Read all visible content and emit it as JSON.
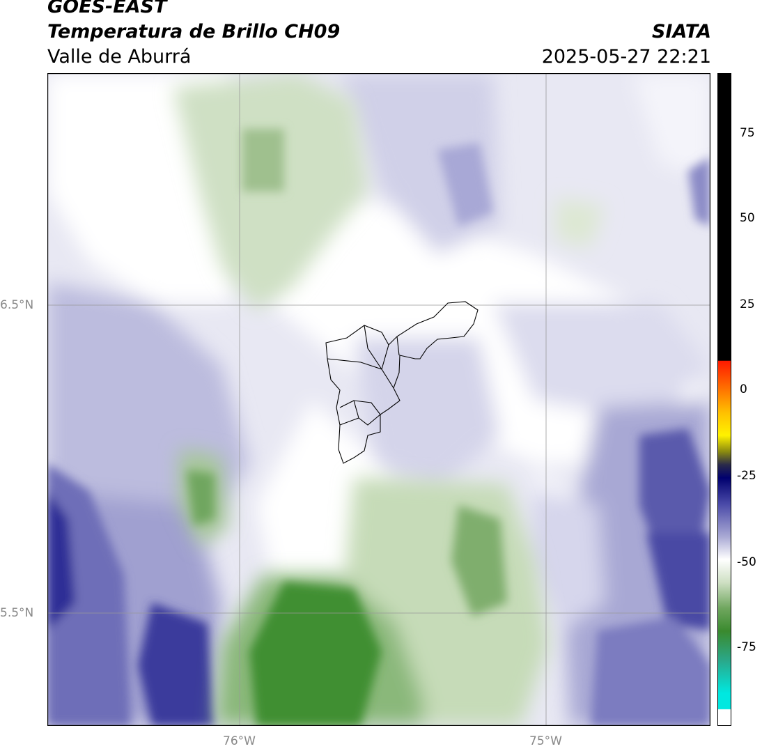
{
  "header": {
    "satellite": "GOES-EAST",
    "product": "Temperatura de Brillo CH09",
    "region": "Valle de Aburrá",
    "organization": "SIATA",
    "datetime": "2025-05-27 22:21"
  },
  "axes": {
    "lat_labels": [
      "6.5°N",
      "5.5°N"
    ],
    "lon_labels": [
      "76°W",
      "75°W"
    ]
  },
  "colorbar": {
    "ticks": [
      "75",
      "50",
      "25",
      "0",
      "-25",
      "-50",
      "-75"
    ],
    "colors": {
      "black": "#000000",
      "red": "#ff2a00",
      "orange": "#ff8c00",
      "yellow": "#fff200",
      "olive": "#6b6b00",
      "navy": "#00006e",
      "purple": "#7777bb",
      "lavender": "#d4d4ea",
      "white": "#ffffff",
      "green": "#3a8a2e",
      "teal": "#2aa88a",
      "cyan": "#00e8e0"
    }
  },
  "map_colors": {
    "white_cloud": "#ffffff",
    "light_lavender": "#e2e2f0",
    "lavender": "#b9b9dc",
    "purple": "#7f7fc0",
    "deep_blue": "#2d2d96",
    "light_green": "#dbe6d2",
    "mid_green": "#a6c797",
    "green": "#6fa65e",
    "dark_green": "#3a8a2e",
    "grid": "#999999",
    "boundary": "#000000"
  }
}
